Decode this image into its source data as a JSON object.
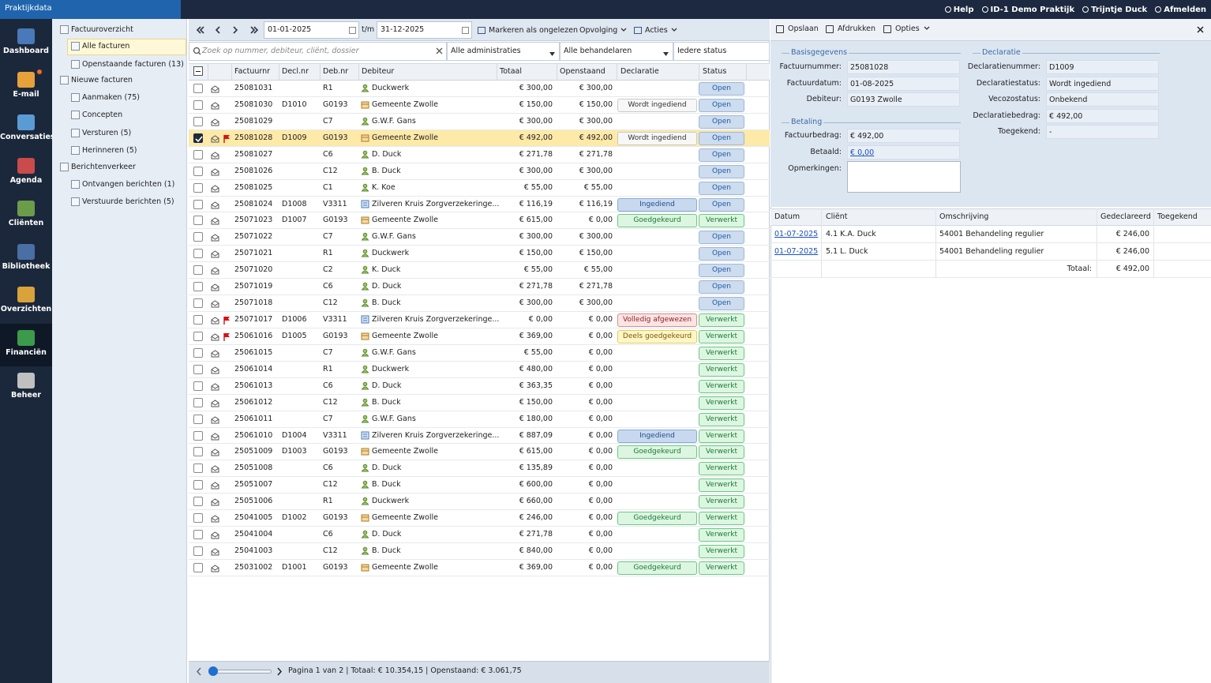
{
  "topbar": {
    "brand": "Praktijkdata",
    "links": [
      "Help",
      "ID-1 Demo Praktijk",
      "Trijntje Duck",
      "Afmelden"
    ]
  },
  "nav": {
    "items": [
      "Dashboard",
      "E-mail",
      "Conversaties",
      "Agenda",
      "Cliënten",
      "Bibliotheek",
      "Overzichten",
      "Financiën",
      "Beheer"
    ],
    "active": 7,
    "badge": 1
  },
  "tree": {
    "items": [
      {
        "label": "Factuuroverzicht",
        "level": 0
      },
      {
        "label": "Alle facturen",
        "level": 1
      },
      {
        "label": "Openstaande facturen (13)",
        "level": 1
      },
      {
        "label": "Nieuwe facturen",
        "level": 0
      },
      {
        "label": "Aanmaken (75)",
        "level": 1
      },
      {
        "label": "Concepten",
        "level": 1
      },
      {
        "label": "Versturen (5)",
        "level": 1
      },
      {
        "label": "Herinneren (5)",
        "level": 1
      },
      {
        "label": "Berichtenverkeer",
        "level": 0
      },
      {
        "label": "Ontvangen berichten (1)",
        "level": 1
      },
      {
        "label": "Verstuurde berichten (5)",
        "level": 1
      }
    ],
    "selected": 1
  },
  "toolbar": {
    "date_from": "01-01-2025",
    "separator": "t/m",
    "date_to": "31-12-2025",
    "actions": [
      "Markeren als ongelezen",
      "Opvolging",
      "Acties"
    ]
  },
  "filters": {
    "search_placeholder": "Zoek op nummer, debiteur, cliënt, dossier",
    "selects": [
      "Alle administraties",
      "Alle behandelaren",
      "Iedere status"
    ]
  },
  "table": {
    "columns": [
      "Factuurnr",
      "Decl.nr",
      "Deb.nr",
      "Debiteur",
      "Totaal",
      "Openstaand",
      "Declaratie",
      "Status"
    ],
    "rows": [
      [
        "25081031",
        null,
        "R1",
        "Duckwerk",
        "€ 300,00",
        "€ 300,00",
        null,
        "Open"
      ],
      [
        "25081030",
        "D1010",
        "G0193",
        "Gemeente Zwolle",
        "€ 150,00",
        "€ 150,00",
        "Wordt ingediend",
        "Open"
      ],
      [
        "25081029",
        null,
        "C7",
        "G.W.F. Gans",
        "€ 300,00",
        "€ 300,00",
        null,
        "Open"
      ],
      [
        "25081028",
        "D1009",
        "G0193",
        "Gemeente Zwolle",
        "€ 492,00",
        "€ 492,00",
        "Wordt ingediend",
        "Open"
      ],
      [
        "25081027",
        null,
        "C6",
        "D. Duck",
        "€ 271,78",
        "€ 271,78",
        null,
        "Open"
      ],
      [
        "25081026",
        null,
        "C12",
        "B. Duck",
        "€ 300,00",
        "€ 300,00",
        null,
        "Open"
      ],
      [
        "25081025",
        null,
        "C1",
        "K. Koe",
        "€ 55,00",
        "€ 55,00",
        null,
        "Open"
      ],
      [
        "25081024",
        "D1008",
        "V3311",
        "Zilveren Kruis Zorgverzekeringe...",
        "€ 116,19",
        "€ 116,19",
        "Ingediend",
        "Open"
      ],
      [
        "25071023",
        "D1007",
        "G0193",
        "Gemeente Zwolle",
        "€ 615,00",
        "€ 0,00",
        "Goedgekeurd",
        "Verwerkt"
      ],
      [
        "25071022",
        null,
        "C7",
        "G.W.F. Gans",
        "€ 300,00",
        "€ 300,00",
        null,
        "Open"
      ],
      [
        "25071021",
        null,
        "R1",
        "Duckwerk",
        "€ 150,00",
        "€ 150,00",
        null,
        "Open"
      ],
      [
        "25071020",
        null,
        "C2",
        "K. Duck",
        "€ 55,00",
        "€ 55,00",
        null,
        "Open"
      ],
      [
        "25071019",
        null,
        "C6",
        "D. Duck",
        "€ 271,78",
        "€ 271,78",
        null,
        "Open"
      ],
      [
        "25071018",
        null,
        "C12",
        "B. Duck",
        "€ 300,00",
        "€ 300,00",
        null,
        "Open"
      ],
      [
        "25071017",
        "D1006",
        "V3311",
        "Zilveren Kruis Zorgverzekeringe...",
        "€ 0,00",
        "€ 0,00",
        "Volledig afgewezen",
        "Verwerkt"
      ],
      [
        "25061016",
        "D1005",
        "G0193",
        "Gemeente Zwolle",
        "€ 369,00",
        "€ 0,00",
        "Deels goedgekeurd",
        "Verwerkt"
      ],
      [
        "25061015",
        null,
        "C7",
        "G.W.F. Gans",
        "€ 55,00",
        "€ 0,00",
        null,
        "Verwerkt"
      ],
      [
        "25061014",
        null,
        "R1",
        "Duckwerk",
        "€ 480,00",
        "€ 0,00",
        null,
        "Verwerkt"
      ],
      [
        "25061013",
        null,
        "C6",
        "D. Duck",
        "€ 363,35",
        "€ 0,00",
        null,
        "Verwerkt"
      ],
      [
        "25061012",
        null,
        "C12",
        "B. Duck",
        "€ 150,00",
        "€ 0,00",
        null,
        "Verwerkt"
      ],
      [
        "25061011",
        null,
        "C7",
        "G.W.F. Gans",
        "€ 180,00",
        "€ 0,00",
        null,
        "Verwerkt"
      ],
      [
        "25061010",
        "D1004",
        "V3311",
        "Zilveren Kruis Zorgverzekeringe...",
        "€ 887,09",
        "€ 0,00",
        "Ingediend",
        "Verwerkt"
      ],
      [
        "25051009",
        "D1003",
        "G0193",
        "Gemeente Zwolle",
        "€ 615,00",
        "€ 0,00",
        "Goedgekeurd",
        "Verwerkt"
      ],
      [
        "25051008",
        null,
        "C6",
        "D. Duck",
        "€ 135,89",
        "€ 0,00",
        null,
        "Verwerkt"
      ],
      [
        "25051007",
        null,
        "C12",
        "B. Duck",
        "€ 600,00",
        "€ 0,00",
        null,
        "Verwerkt"
      ],
      [
        "25051006",
        null,
        "R1",
        "Duckwerk",
        "€ 660,00",
        "€ 0,00",
        null,
        "Verwerkt"
      ],
      [
        "25041005",
        "D1002",
        "G0193",
        "Gemeente Zwolle",
        "€ 246,00",
        "€ 0,00",
        "Goedgekeurd",
        "Verwerkt"
      ],
      [
        "25041004",
        null,
        "C6",
        "D. Duck",
        "€ 271,78",
        "€ 0,00",
        null,
        "Verwerkt"
      ],
      [
        "25041003",
        null,
        "C12",
        "B. Duck",
        "€ 840,00",
        "€ 0,00",
        null,
        "Verwerkt"
      ],
      [
        "25031002",
        "D1001",
        "G0193",
        "Gemeente Zwolle",
        "€ 369,00",
        "€ 0,00",
        "Goedgekeurd",
        "Verwerkt"
      ]
    ],
    "selected": 3,
    "flagged": [
      3,
      14,
      15
    ],
    "declaratie_tones": {
      "Wordt ingediend": "grey",
      "Ingediend": "blue",
      "Goedgekeurd": "green",
      "Volledig afgewezen": "red",
      "Deels goedgekeurd": "yellow"
    },
    "status_tones": {
      "Open": "blue2",
      "Verwerkt": "green"
    }
  },
  "footer": {
    "pagination": "Pagina 1 van 2 | Totaal: € 10.354,15 | Openstaand: € 3.061,75"
  },
  "detail": {
    "toolbar": [
      "Opslaan",
      "Afdrukken",
      "Opties"
    ],
    "basisgegevens": {
      "title": "Basisgegevens",
      "fields": [
        {
          "label": "Factuurnummer:",
          "value": "25081028"
        },
        {
          "label": "Factuurdatum:",
          "value": "01-08-2025"
        },
        {
          "label": "Debiteur:",
          "value": "G0193 Zwolle"
        }
      ]
    },
    "betaling": {
      "title": "Betaling",
      "fields": [
        {
          "label": "Factuurbedrag:",
          "value": "€ 492,00"
        },
        {
          "label": "Betaald:",
          "value": "€ 0,00",
          "link": true
        }
      ],
      "remarks_label": "Opmerkingen:"
    },
    "declaratie": {
      "title": "Declaratie",
      "fields": [
        {
          "label": "Declaratienummer:",
          "value": "D1009"
        },
        {
          "label": "Declaratiestatus:",
          "value": "Wordt ingediend"
        },
        {
          "label": "Vecozostatus:",
          "value": "Onbekend"
        },
        {
          "label": "Declaratiebedrag:",
          "value": "€ 492,00"
        },
        {
          "label": "Toegekend:",
          "value": "-"
        }
      ]
    },
    "lines": {
      "columns": [
        "Datum",
        "Cliënt",
        "Omschrijving",
        "Gedeclareerd",
        "Toegekend"
      ],
      "rows": [
        [
          "01-07-2025",
          "4.1 K.A. Duck",
          "54001 Behandeling regulier",
          "€ 246,00",
          null
        ],
        [
          "01-07-2025",
          "5.1 L. Duck",
          "54001 Behandeling regulier",
          "€ 246,00",
          null
        ]
      ],
      "total_label": "Totaal:",
      "total": "€ 492,00"
    }
  }
}
